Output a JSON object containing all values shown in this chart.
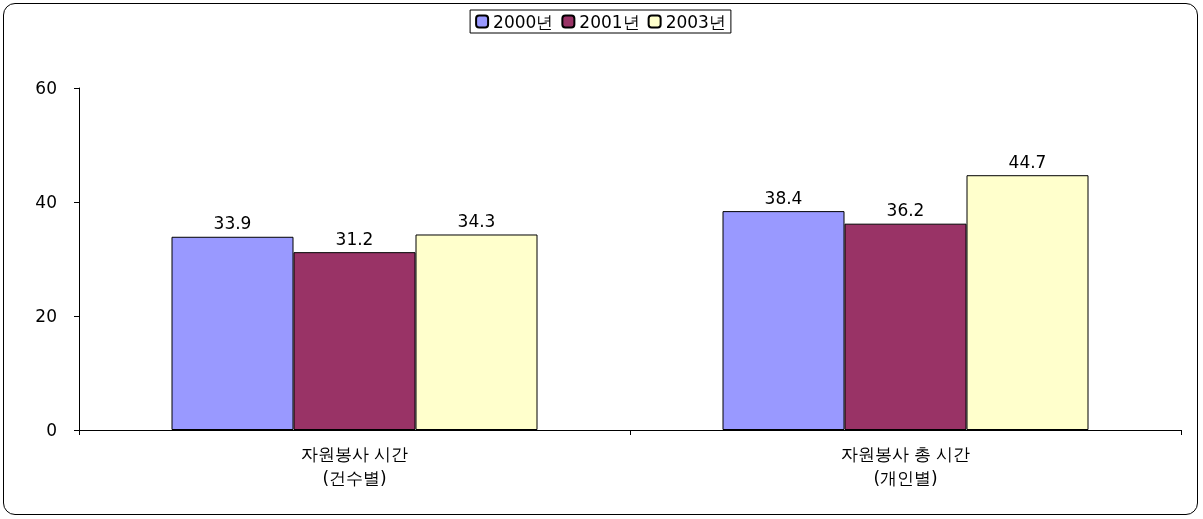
{
  "chart_data": {
    "type": "bar",
    "categories": [
      "자원봉사 시간\n(건수별)",
      "자원봉사 총 시간\n(개인별)"
    ],
    "series": [
      {
        "name": "2000년",
        "color": "#9999ff",
        "values": [
          33.9,
          38.4
        ]
      },
      {
        "name": "2001년",
        "color": "#993366",
        "values": [
          31.2,
          36.2
        ]
      },
      {
        "name": "2003년",
        "color": "#ffffcc",
        "values": [
          34.3,
          44.7
        ]
      }
    ],
    "ylim": [
      0,
      60
    ],
    "yticks": [
      0,
      20,
      40,
      60
    ],
    "grid": false,
    "legend": "top",
    "data_labels": true
  }
}
